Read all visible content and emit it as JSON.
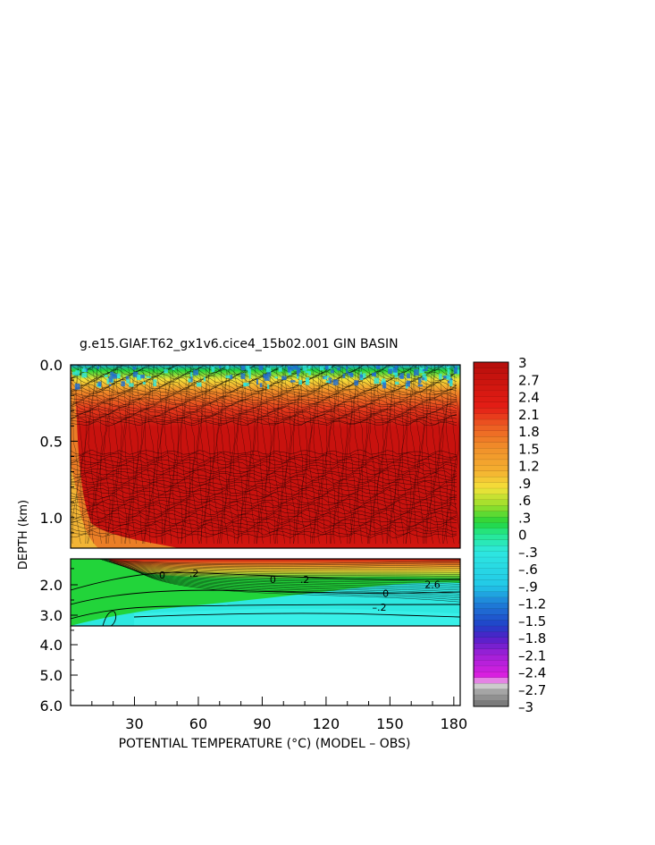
{
  "chart_data": {
    "type": "heatmap",
    "title": "g.e15.GIAF.T62_gx1v6.cice4_15b02.001 GIN BASIN",
    "xlabel": "POTENTIAL TEMPERATURE (°C) (MODEL – OBS)",
    "ylabel": "DEPTH (km)",
    "xlim": [
      0,
      183
    ],
    "x_ticks": [
      "30",
      "60",
      "90",
      "120",
      "150",
      "180"
    ],
    "x_tick_values": [
      30,
      60,
      90,
      120,
      150,
      180
    ],
    "upper_panel": {
      "ylim": [
        0,
        1.2
      ],
      "y_ticks": [
        "0.0",
        "0.5",
        "1.0"
      ],
      "y_tick_values": [
        0.0,
        0.5,
        1.0
      ]
    },
    "lower_panel": {
      "y_ticks": [
        "2.0",
        "3.0",
        "4.0",
        "5.0",
        "6.0"
      ],
      "y_tick_values": [
        2.0,
        3.0,
        4.0,
        5.0,
        6.0
      ],
      "data_bottom_depth": 3.35
    },
    "contour_labels": [
      {
        "text": "0",
        "x": 43,
        "depth": 1.8
      },
      {
        "text": ".2",
        "x": 58,
        "depth": 1.75
      },
      {
        "text": "0",
        "x": 95,
        "depth": 1.95
      },
      {
        "text": ".2",
        "x": 110,
        "depth": 1.95
      },
      {
        "text": "0",
        "x": 148,
        "depth": 2.4
      },
      {
        "text": "–.2",
        "x": 145,
        "depth": 2.85
      },
      {
        "text": "2.6",
        "x": 170,
        "depth": 2.1
      }
    ],
    "colorbar": {
      "min": -3,
      "max": 3,
      "step": 0.1,
      "labels": [
        "3",
        "2.7",
        "2.4",
        "2.1",
        "1.8",
        "1.5",
        "1.2",
        ".9",
        ".6",
        ".3",
        "0",
        "–.3",
        "–.6",
        "–.9",
        "–1.2",
        "–1.5",
        "–1.8",
        "–2.1",
        "–2.4",
        "–2.7",
        "–3"
      ],
      "label_values": [
        3,
        2.7,
        2.4,
        2.1,
        1.8,
        1.5,
        1.2,
        0.9,
        0.6,
        0.3,
        0,
        -0.3,
        -0.6,
        -0.9,
        -1.2,
        -1.5,
        -1.8,
        -2.1,
        -2.4,
        -2.7,
        -3
      ]
    },
    "colors": {
      "dark_red": "#c8120e",
      "red": "#e41e16",
      "orange": "#f0902a",
      "yellow": "#f4e23a",
      "green": "#22d43a",
      "cyan": "#2ee8e0",
      "blue": "#1e6ed8",
      "purple": "#6a1ec8",
      "magenta": "#e020e0",
      "gray": "#909090"
    }
  }
}
